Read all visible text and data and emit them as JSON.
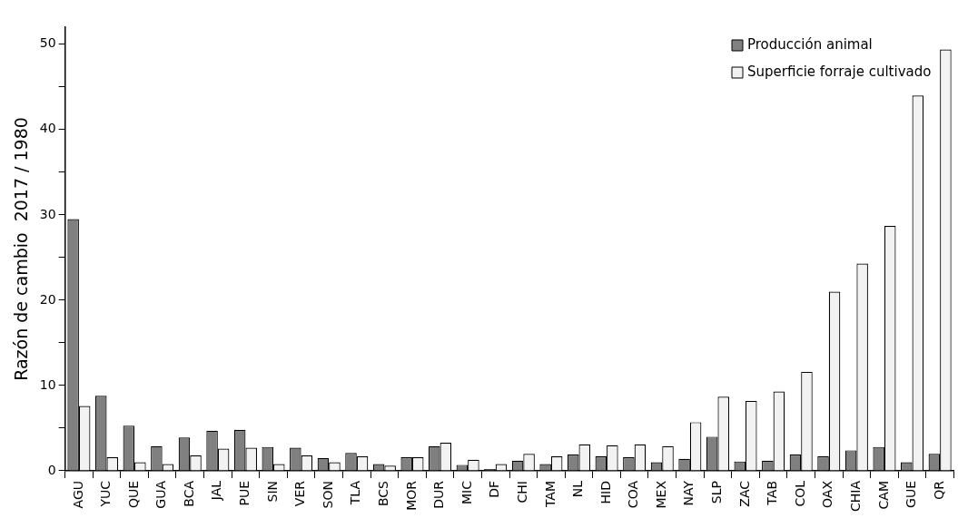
{
  "chart_data": {
    "type": "bar",
    "ylabel": "Razón de cambio  2017 / 1980",
    "categories": [
      "AGU",
      "YUC",
      "QUE",
      "GUA",
      "BCA",
      "JAL",
      "PUE",
      "SIN",
      "VER",
      "SON",
      "TLA",
      "BCS",
      "MOR",
      "DUR",
      "MIC",
      "DF",
      "CHI",
      "TAM",
      "NL",
      "HID",
      "COA",
      "MEX",
      "NAY",
      "SLP",
      "ZAC",
      "TAB",
      "COL",
      "OAX",
      "CHIA",
      "CAM",
      "GUE",
      "QR"
    ],
    "series": [
      {
        "name": "Producción animal",
        "color": "#808080",
        "values": [
          29.5,
          8.8,
          5.3,
          2.9,
          3.9,
          4.7,
          4.8,
          2.8,
          2.7,
          1.5,
          2.1,
          0.8,
          1.6,
          2.9,
          0.7,
          0.2,
          1.2,
          0.8,
          1.9,
          1.7,
          1.6,
          1.0,
          1.4,
          4.0,
          1.1,
          1.2,
          1.9,
          1.7,
          2.4,
          2.8,
          1.0,
          2.0
        ]
      },
      {
        "name": "Superficie forraje cultivado",
        "color": "#f2f2f2",
        "values": [
          7.6,
          1.6,
          1.0,
          0.8,
          1.8,
          2.6,
          2.7,
          0.8,
          1.8,
          1.0,
          1.7,
          0.6,
          1.6,
          3.3,
          1.3,
          0.8,
          2.0,
          1.7,
          3.1,
          3.0,
          3.1,
          2.9,
          5.7,
          8.7,
          8.2,
          9.3,
          11.6,
          21.0,
          24.3,
          28.7,
          44.0,
          49.4
        ]
      }
    ],
    "ylim": [
      0,
      52
    ],
    "yticks": [
      0,
      {
        "value": 5,
        "label": null
      },
      10,
      {
        "value": 15,
        "label": null
      },
      20,
      {
        "value": 25,
        "label": null
      },
      30,
      {
        "value": 35,
        "label": null
      },
      40,
      {
        "value": 45,
        "label": null
      },
      50
    ],
    "grid": false,
    "legend": "top right"
  }
}
